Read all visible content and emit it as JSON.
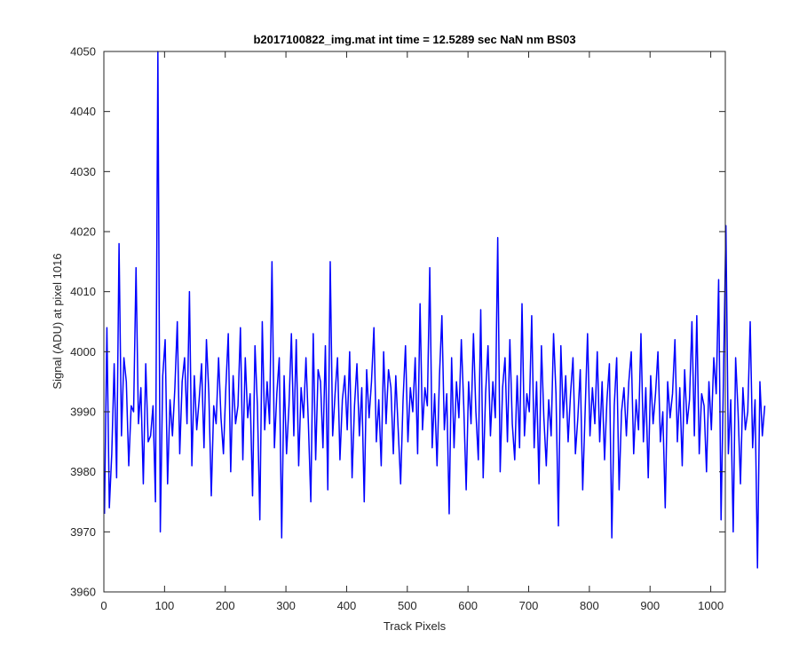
{
  "chart_data": {
    "type": "line",
    "title": "b2017100822_img.mat int time = 12.5289 sec  NaN nm BS03",
    "xlabel": "Track Pixels",
    "ylabel": "Signal (ADU) at pixel 1016",
    "xlim": [
      0,
      1024
    ],
    "ylim": [
      3960,
      4050
    ],
    "xticks": [
      0,
      100,
      200,
      300,
      400,
      500,
      600,
      700,
      800,
      900,
      1000
    ],
    "yticks": [
      3960,
      3970,
      3980,
      3990,
      4000,
      4010,
      4020,
      4030,
      4040,
      4050
    ],
    "grid": false,
    "line_color": "#0000ff",
    "series": [
      {
        "x_start": 1,
        "x_step": 4,
        "values": [
          3973,
          4004,
          3974,
          3983,
          3998,
          3979,
          4018,
          3986,
          3999,
          3995,
          3981,
          3991,
          3990,
          4014,
          3988,
          3994,
          3978,
          3998,
          3985,
          3986,
          3991,
          3975,
          4050,
          3970,
          3996,
          4002,
          3978,
          3992,
          3986,
          3994,
          4005,
          3983,
          3995,
          3999,
          3988,
          4010,
          3981,
          3996,
          3987,
          3992,
          3998,
          3984,
          4002,
          3993,
          3976,
          3991,
          3988,
          3999,
          3989,
          3983,
          3994,
          4003,
          3980,
          3996,
          3988,
          3991,
          4004,
          3982,
          3999,
          3989,
          3993,
          3976,
          4001,
          3991,
          3972,
          4005,
          3987,
          3995,
          3988,
          4015,
          3984,
          3993,
          3999,
          3969,
          3996,
          3983,
          3991,
          4003,
          3986,
          4002,
          3981,
          3994,
          3989,
          3999,
          3988,
          3975,
          4003,
          3982,
          3997,
          3995,
          3984,
          4001,
          3977,
          4015,
          3986,
          3993,
          3999,
          3982,
          3992,
          3996,
          3987,
          4000,
          3979,
          3991,
          3998,
          3986,
          3994,
          3975,
          3997,
          3989,
          3995,
          4004,
          3985,
          3992,
          3981,
          4000,
          3988,
          3997,
          3994,
          3983,
          3996,
          3987,
          3978,
          3992,
          4001,
          3985,
          3994,
          3990,
          3999,
          3983,
          4008,
          3987,
          3994,
          3991,
          4014,
          3984,
          3993,
          3981,
          3996,
          4006,
          3987,
          3993,
          3973,
          3999,
          3984,
          3995,
          3989,
          4002,
          3991,
          3977,
          3995,
          3988,
          4003,
          3990,
          3982,
          4007,
          3979,
          3993,
          4001,
          3986,
          3995,
          3989,
          4019,
          3980,
          3994,
          3999,
          3985,
          4002,
          3988,
          3982,
          3996,
          3984,
          4008,
          3986,
          3993,
          3990,
          4006,
          3984,
          3995,
          3978,
          4001,
          3989,
          3981,
          3992,
          3986,
          4003,
          3993,
          3971,
          4001,
          3989,
          3996,
          3985,
          3993,
          3999,
          3983,
          3989,
          3997,
          3977,
          3990,
          4003,
          3986,
          3994,
          3988,
          4000,
          3985,
          3995,
          3982,
          3992,
          3998,
          3969,
          3991,
          3999,
          3977,
          3990,
          3994,
          3986,
          3995,
          4000,
          3983,
          3992,
          3987,
          4003,
          3985,
          3994,
          3979,
          3996,
          3988,
          3993,
          4000,
          3985,
          3990,
          3974,
          3995,
          3989,
          3993,
          4002,
          3985,
          3994,
          3981,
          3997,
          3988,
          3992,
          4005,
          3986,
          4006,
          3983,
          3993,
          3991,
          3980,
          3995,
          3987,
          3999,
          3993,
          4012,
          3972,
          3996,
          4021,
          3983,
          3992,
          3970,
          3999,
          3990,
          3978,
          3994,
          3987,
          3990,
          4005,
          3984,
          3992,
          3964,
          3995,
          3986,
          3991
        ]
      }
    ]
  }
}
